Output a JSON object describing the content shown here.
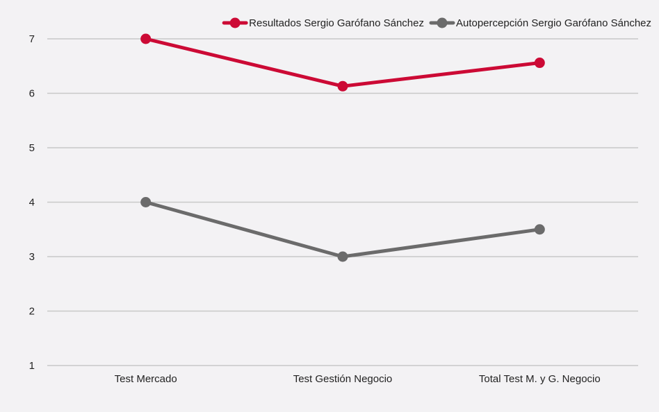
{
  "chart_data": {
    "type": "line",
    "title": "",
    "xlabel": "",
    "ylabel": "",
    "categories": [
      "Test Mercado",
      "Test Gestión Negocio",
      "Total Test M. y G. Negocio"
    ],
    "ylim": [
      1,
      7
    ],
    "yticks": [
      1,
      2,
      3,
      4,
      5,
      6,
      7
    ],
    "grid": true,
    "legend_position": "top-right",
    "series": [
      {
        "name": "Resultados Sergio Garófano Sánchez",
        "values": [
          7,
          6.13,
          6.56
        ],
        "color": "#cc0a35"
      },
      {
        "name": "Autopercepción Sergio Garófano Sánchez",
        "values": [
          4,
          3,
          3.5
        ],
        "color": "#6b6b6b"
      }
    ]
  },
  "colors": {
    "background": "#f3f2f4",
    "grid": "#c8c8c8"
  }
}
